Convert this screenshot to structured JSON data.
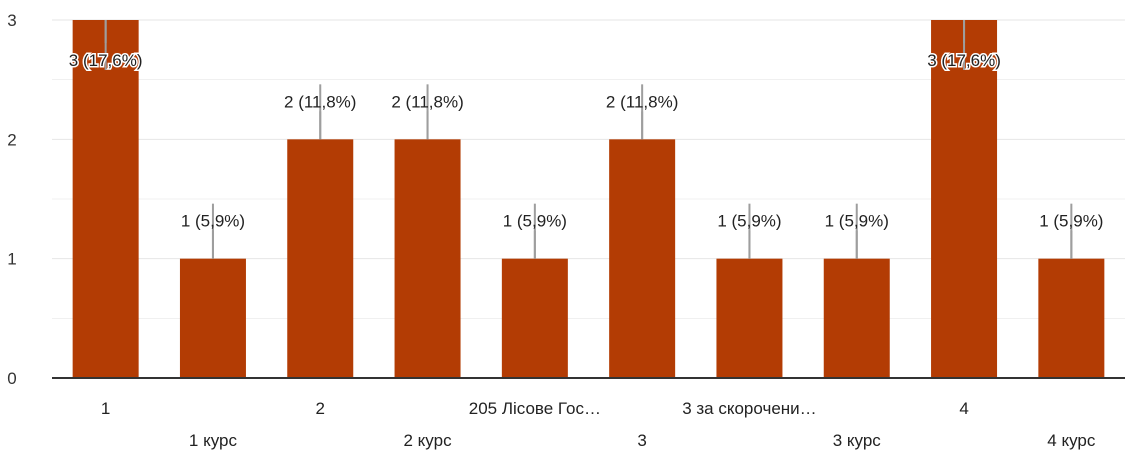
{
  "chart_data": {
    "type": "bar",
    "categories": [
      "1",
      "1 курс",
      "2",
      "2 курс",
      "205 Лісове Гос…",
      "3",
      "3 за скорочени…",
      "3 курс",
      "4",
      "4 курс"
    ],
    "values": [
      3,
      1,
      2,
      2,
      1,
      2,
      1,
      1,
      3,
      1
    ],
    "data_labels": [
      "3 (17,6%)",
      "1 (5,9%)",
      "2 (11,8%)",
      "2 (11,8%)",
      "1 (5,9%)",
      "2 (11,8%)",
      "1 (5,9%)",
      "1 (5,9%)",
      "3 (17,6%)",
      "1 (5,9%)"
    ],
    "y_ticks": [
      "0",
      "1",
      "2",
      "3"
    ],
    "ylim": [
      0,
      3
    ],
    "grid": true,
    "title": "",
    "xlabel": "",
    "ylabel": "",
    "colors": {
      "bar": "#b33c04",
      "grid": "#e6e6e6",
      "axis": "#333333",
      "leader": "#9e9e9e"
    }
  }
}
